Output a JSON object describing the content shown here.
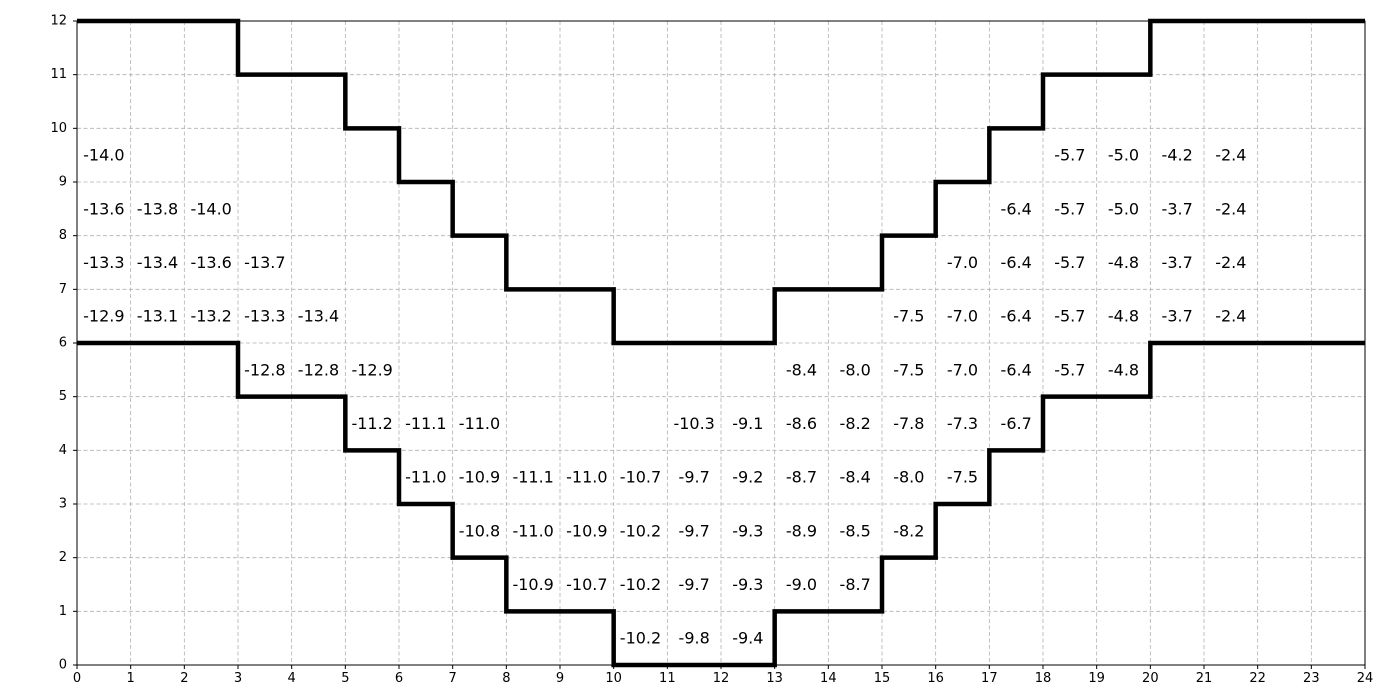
{
  "chart_data": {
    "type": "heatmap",
    "title": "",
    "xlabel": "",
    "ylabel": "",
    "xlim": [
      0,
      24
    ],
    "ylim": [
      0,
      12
    ],
    "grid": true,
    "x_ticks": [
      0,
      1,
      2,
      3,
      4,
      5,
      6,
      7,
      8,
      9,
      10,
      11,
      12,
      13,
      14,
      15,
      16,
      17,
      18,
      19,
      20,
      21,
      22,
      23,
      24
    ],
    "y_ticks": [
      0,
      1,
      2,
      3,
      4,
      5,
      6,
      7,
      8,
      9,
      10,
      11,
      12
    ],
    "boundaries": [
      {
        "name": "",
        "points": [
          [
            0,
            12
          ],
          [
            3,
            12
          ],
          [
            3,
            11
          ],
          [
            5,
            11
          ],
          [
            5,
            10
          ],
          [
            6,
            10
          ],
          [
            6,
            9
          ],
          [
            7,
            9
          ],
          [
            7,
            8
          ],
          [
            8,
            8
          ],
          [
            8,
            7
          ],
          [
            10,
            7
          ],
          [
            10,
            6
          ],
          [
            13,
            6
          ],
          [
            13,
            7
          ],
          [
            15,
            7
          ],
          [
            15,
            8
          ],
          [
            16,
            8
          ],
          [
            16,
            9
          ],
          [
            17,
            9
          ],
          [
            17,
            10
          ],
          [
            18,
            10
          ],
          [
            18,
            11
          ],
          [
            20,
            11
          ],
          [
            20,
            12
          ],
          [
            24,
            12
          ]
        ]
      },
      {
        "name": "",
        "points": [
          [
            0,
            6
          ],
          [
            3,
            6
          ],
          [
            3,
            5
          ],
          [
            5,
            5
          ],
          [
            5,
            4
          ],
          [
            6,
            4
          ],
          [
            6,
            3
          ],
          [
            7,
            3
          ],
          [
            7,
            2
          ],
          [
            8,
            2
          ],
          [
            8,
            1
          ],
          [
            10,
            1
          ],
          [
            10,
            0
          ],
          [
            13,
            0
          ],
          [
            13,
            1
          ],
          [
            15,
            1
          ],
          [
            15,
            2
          ],
          [
            16,
            2
          ],
          [
            16,
            3
          ],
          [
            17,
            3
          ],
          [
            17,
            4
          ],
          [
            18,
            4
          ],
          [
            18,
            5
          ],
          [
            20,
            5
          ],
          [
            20,
            6
          ],
          [
            24,
            6
          ]
        ]
      }
    ],
    "cells": [
      {
        "x": 0.5,
        "y": 9.5,
        "label": "-14.0"
      },
      {
        "x": 18.5,
        "y": 9.5,
        "label": "-5.7"
      },
      {
        "x": 19.5,
        "y": 9.5,
        "label": "-5.0"
      },
      {
        "x": 20.5,
        "y": 9.5,
        "label": "-4.2"
      },
      {
        "x": 21.5,
        "y": 9.5,
        "label": "-2.4"
      },
      {
        "x": 0.5,
        "y": 8.5,
        "label": "-13.6"
      },
      {
        "x": 1.5,
        "y": 8.5,
        "label": "-13.8"
      },
      {
        "x": 2.5,
        "y": 8.5,
        "label": "-14.0"
      },
      {
        "x": 17.5,
        "y": 8.5,
        "label": "-6.4"
      },
      {
        "x": 18.5,
        "y": 8.5,
        "label": "-5.7"
      },
      {
        "x": 19.5,
        "y": 8.5,
        "label": "-5.0"
      },
      {
        "x": 20.5,
        "y": 8.5,
        "label": "-3.7"
      },
      {
        "x": 21.5,
        "y": 8.5,
        "label": "-2.4"
      },
      {
        "x": 0.5,
        "y": 7.5,
        "label": "-13.3"
      },
      {
        "x": 1.5,
        "y": 7.5,
        "label": "-13.4"
      },
      {
        "x": 2.5,
        "y": 7.5,
        "label": "-13.6"
      },
      {
        "x": 3.5,
        "y": 7.5,
        "label": "-13.7"
      },
      {
        "x": 16.5,
        "y": 7.5,
        "label": "-7.0"
      },
      {
        "x": 17.5,
        "y": 7.5,
        "label": "-6.4"
      },
      {
        "x": 18.5,
        "y": 7.5,
        "label": "-5.7"
      },
      {
        "x": 19.5,
        "y": 7.5,
        "label": "-4.8"
      },
      {
        "x": 20.5,
        "y": 7.5,
        "label": "-3.7"
      },
      {
        "x": 21.5,
        "y": 7.5,
        "label": "-2.4"
      },
      {
        "x": 0.5,
        "y": 6.5,
        "label": "-12.9"
      },
      {
        "x": 1.5,
        "y": 6.5,
        "label": "-13.1"
      },
      {
        "x": 2.5,
        "y": 6.5,
        "label": "-13.2"
      },
      {
        "x": 3.5,
        "y": 6.5,
        "label": "-13.3"
      },
      {
        "x": 4.5,
        "y": 6.5,
        "label": "-13.4"
      },
      {
        "x": 15.5,
        "y": 6.5,
        "label": "-7.5"
      },
      {
        "x": 16.5,
        "y": 6.5,
        "label": "-7.0"
      },
      {
        "x": 17.5,
        "y": 6.5,
        "label": "-6.4"
      },
      {
        "x": 18.5,
        "y": 6.5,
        "label": "-5.7"
      },
      {
        "x": 19.5,
        "y": 6.5,
        "label": "-4.8"
      },
      {
        "x": 20.5,
        "y": 6.5,
        "label": "-3.7"
      },
      {
        "x": 21.5,
        "y": 6.5,
        "label": "-2.4"
      },
      {
        "x": 3.5,
        "y": 5.5,
        "label": "-12.8"
      },
      {
        "x": 4.5,
        "y": 5.5,
        "label": "-12.8"
      },
      {
        "x": 5.5,
        "y": 5.5,
        "label": "-12.9"
      },
      {
        "x": 13.5,
        "y": 5.5,
        "label": "-8.4"
      },
      {
        "x": 14.5,
        "y": 5.5,
        "label": "-8.0"
      },
      {
        "x": 15.5,
        "y": 5.5,
        "label": "-7.5"
      },
      {
        "x": 16.5,
        "y": 5.5,
        "label": "-7.0"
      },
      {
        "x": 17.5,
        "y": 5.5,
        "label": "-6.4"
      },
      {
        "x": 18.5,
        "y": 5.5,
        "label": "-5.7"
      },
      {
        "x": 19.5,
        "y": 5.5,
        "label": "-4.8"
      },
      {
        "x": 5.5,
        "y": 4.5,
        "label": "-11.2"
      },
      {
        "x": 6.5,
        "y": 4.5,
        "label": "-11.1"
      },
      {
        "x": 7.5,
        "y": 4.5,
        "label": "-11.0"
      },
      {
        "x": 11.5,
        "y": 4.5,
        "label": "-10.3"
      },
      {
        "x": 12.5,
        "y": 4.5,
        "label": "-9.1"
      },
      {
        "x": 13.5,
        "y": 4.5,
        "label": "-8.6"
      },
      {
        "x": 14.5,
        "y": 4.5,
        "label": "-8.2"
      },
      {
        "x": 15.5,
        "y": 4.5,
        "label": "-7.8"
      },
      {
        "x": 16.5,
        "y": 4.5,
        "label": "-7.3"
      },
      {
        "x": 17.5,
        "y": 4.5,
        "label": "-6.7"
      },
      {
        "x": 6.5,
        "y": 3.5,
        "label": "-11.0"
      },
      {
        "x": 7.5,
        "y": 3.5,
        "label": "-10.9"
      },
      {
        "x": 8.5,
        "y": 3.5,
        "label": "-11.1"
      },
      {
        "x": 9.5,
        "y": 3.5,
        "label": "-11.0"
      },
      {
        "x": 10.5,
        "y": 3.5,
        "label": "-10.7"
      },
      {
        "x": 11.5,
        "y": 3.5,
        "label": "-9.7"
      },
      {
        "x": 12.5,
        "y": 3.5,
        "label": "-9.2"
      },
      {
        "x": 13.5,
        "y": 3.5,
        "label": "-8.7"
      },
      {
        "x": 14.5,
        "y": 3.5,
        "label": "-8.4"
      },
      {
        "x": 15.5,
        "y": 3.5,
        "label": "-8.0"
      },
      {
        "x": 16.5,
        "y": 3.5,
        "label": "-7.5"
      },
      {
        "x": 7.5,
        "y": 2.5,
        "label": "-10.8"
      },
      {
        "x": 8.5,
        "y": 2.5,
        "label": "-11.0"
      },
      {
        "x": 9.5,
        "y": 2.5,
        "label": "-10.9"
      },
      {
        "x": 10.5,
        "y": 2.5,
        "label": "-10.2"
      },
      {
        "x": 11.5,
        "y": 2.5,
        "label": "-9.7"
      },
      {
        "x": 12.5,
        "y": 2.5,
        "label": "-9.3"
      },
      {
        "x": 13.5,
        "y": 2.5,
        "label": "-8.9"
      },
      {
        "x": 14.5,
        "y": 2.5,
        "label": "-8.5"
      },
      {
        "x": 15.5,
        "y": 2.5,
        "label": "-8.2"
      },
      {
        "x": 8.5,
        "y": 1.5,
        "label": "-10.9"
      },
      {
        "x": 9.5,
        "y": 1.5,
        "label": "-10.7"
      },
      {
        "x": 10.5,
        "y": 1.5,
        "label": "-10.2"
      },
      {
        "x": 11.5,
        "y": 1.5,
        "label": "-9.7"
      },
      {
        "x": 12.5,
        "y": 1.5,
        "label": "-9.3"
      },
      {
        "x": 13.5,
        "y": 1.5,
        "label": "-9.0"
      },
      {
        "x": 14.5,
        "y": 1.5,
        "label": "-8.7"
      },
      {
        "x": 10.5,
        "y": 0.5,
        "label": "-10.2"
      },
      {
        "x": 11.5,
        "y": 0.5,
        "label": "-9.8"
      },
      {
        "x": 12.5,
        "y": 0.5,
        "label": "-9.4"
      }
    ]
  }
}
